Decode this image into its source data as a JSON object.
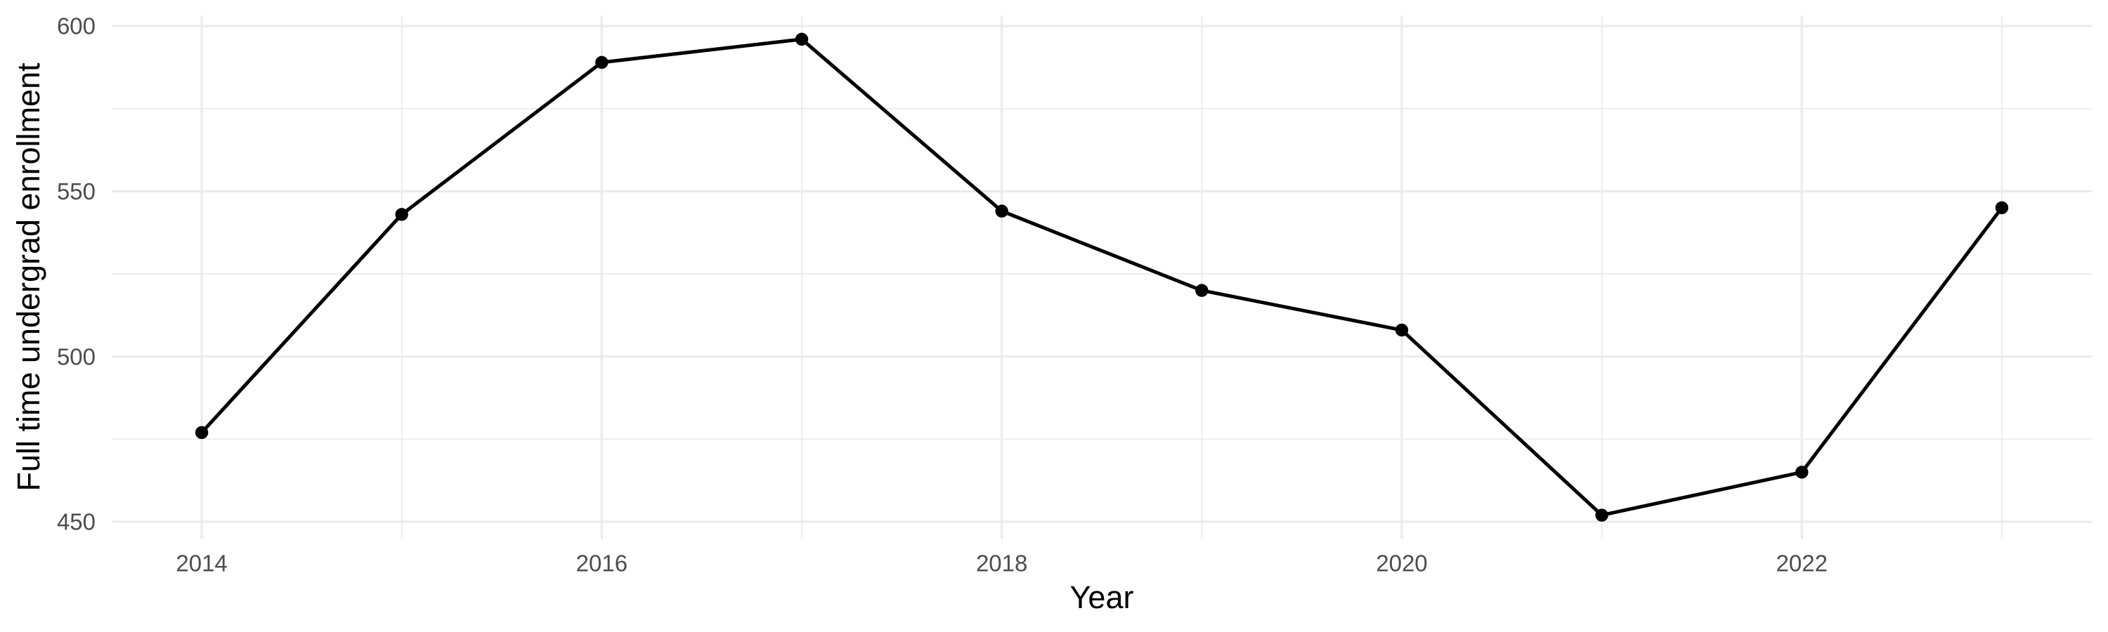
{
  "page": {
    "background_color": "#FFFFFF"
  },
  "chart_data": {
    "type": "line",
    "title": "",
    "xlabel": "Year",
    "ylabel": "Full time undergrad enrollment",
    "x": [
      2014,
      2015,
      2016,
      2017,
      2018,
      2019,
      2020,
      2021,
      2022,
      2023
    ],
    "series": [
      {
        "name": "Full time undergrad enrollment",
        "values": [
          477,
          543,
          589,
          596,
          544,
          520,
          508,
          452,
          465,
          545
        ]
      }
    ],
    "x_tick_labels": [
      "2014",
      "2016",
      "2018",
      "2020",
      "2022"
    ],
    "x_ticks_major": [
      2014,
      2016,
      2018,
      2020,
      2022
    ],
    "x_ticks_minor": [
      2015,
      2017,
      2019,
      2021,
      2023
    ],
    "y_tick_labels": [
      "450",
      "500",
      "550",
      "600"
    ],
    "y_ticks_major": [
      450,
      500,
      550,
      600
    ],
    "y_ticks_minor": [
      475,
      525,
      575
    ],
    "xlim": [
      2013.55,
      2023.45
    ],
    "ylim": [
      444.8,
      603.2
    ],
    "grid": true,
    "legend": false,
    "style": {
      "line_color": "#000000",
      "point_color": "#000000",
      "grid_color": "#EBEBEB",
      "tick_label_color": "#4D4D4D",
      "axis_title_color": "#000000",
      "background_color": "#FFFFFF"
    }
  }
}
